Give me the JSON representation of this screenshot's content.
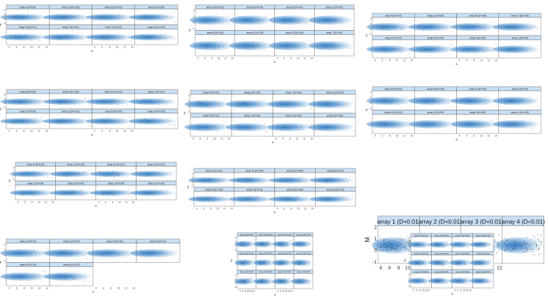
{
  "app": {
    "background": "#ffffff",
    "strip_color": "#c9e0f4",
    "density_color": "#2b79c2",
    "point_color": "#1a2a3a"
  },
  "figures": [
    {
      "id": "fig1",
      "ylabel": "M",
      "xlabel": "A",
      "panels": [
        {
          "label": "array 4 (D=0.00)"
        },
        {
          "label": "array 13 (D=0.00)"
        },
        {
          "label": "array 15 (D=0.02)"
        },
        {
          "label": "array 3 (D=0.00)"
        },
        {
          "label": "array 14 (D=0.01)"
        },
        {
          "label": "array 1 (D=0.01)"
        },
        {
          "label": "array 7 (D=0.00)"
        },
        {
          "label": "array 12 (D=0.00)"
        }
      ],
      "xticks": [
        "4",
        "6",
        "8",
        "10",
        "12",
        "14"
      ],
      "yticks": [
        "-2",
        "0",
        "2",
        "4"
      ]
    },
    {
      "id": "fig2",
      "ylabel": "M",
      "xlabel": "A",
      "panels": [
        {
          "label": "array 13 (D=0.00)"
        },
        {
          "label": "array 6 (D=0.00)"
        },
        {
          "label": "array 5 (D=0.00)"
        },
        {
          "label": "array 11 (D=0.00)"
        },
        {
          "label": "array 8 (D=0.00)"
        },
        {
          "label": "array 9 (D=0.00)"
        },
        {
          "label": "array 10 (D=0.00)"
        },
        {
          "label": "array 7 (D=0.00)"
        }
      ],
      "xticks": [
        "4",
        "6",
        "8",
        "10",
        "12",
        "14"
      ],
      "yticks": [
        "-2",
        "0",
        "2",
        "4"
      ]
    },
    {
      "id": "fig3",
      "ylabel": "M",
      "xlabel": "A",
      "panels": [
        {
          "label": "array 4 (D=0.00)"
        },
        {
          "label": "array 2 (D=0.00)"
        },
        {
          "label": "array 16 (D=0.00)"
        },
        {
          "label": "array 17 (D=0.00)"
        },
        {
          "label": "array 3 (D=0.00)"
        },
        {
          "label": "array 6 (D=0.00)"
        },
        {
          "label": "array 5 (D=0.00)"
        },
        {
          "label": "array 1 (D=0.00)"
        }
      ],
      "xticks": [
        "4",
        "6",
        "8",
        "10",
        "12",
        "14"
      ],
      "yticks": [
        "-2",
        "0",
        "2",
        "4"
      ]
    },
    {
      "id": "fig4",
      "ylabel": "M",
      "xlabel": "A",
      "panels": [
        {
          "label": "array 8 (D=0.00)"
        },
        {
          "label": "array 9 (D=0.00)"
        },
        {
          "label": "array 12 (D=0.01)"
        },
        {
          "label": "array 7 (D=0.01)"
        },
        {
          "label": "array 2 (D=0.00)"
        },
        {
          "label": "array 11 (D=0.01)"
        },
        {
          "label": "array 6 (D=0.00)"
        },
        {
          "label": "array 10 (D=0.00)"
        }
      ],
      "xticks": [
        "4",
        "6",
        "8",
        "10",
        "12",
        "14"
      ],
      "yticks": [
        "-2",
        "0",
        "2",
        "4"
      ]
    },
    {
      "id": "fig5",
      "ylabel": "M",
      "xlabel": "A",
      "panels": [
        {
          "label": "array 5 (D=0.00)"
        },
        {
          "label": "array 6 (D=0.00)"
        },
        {
          "label": "array 7 (D=0.00)"
        },
        {
          "label": "array 11 (D=0.00)"
        },
        {
          "label": "array 2 (D=0.01)"
        },
        {
          "label": "array 1 (D=0.00)"
        },
        {
          "label": "array 3 (D=0.00)"
        },
        {
          "label": "array 8 (D=0.00)"
        }
      ],
      "xticks": [
        "4",
        "6",
        "8",
        "10",
        "12",
        "14"
      ],
      "yticks": [
        "-2",
        "0",
        "2",
        "4"
      ]
    },
    {
      "id": "fig6",
      "ylabel": "M",
      "xlabel": "A",
      "panels": [
        {
          "label": "array 16 (D=0.01)"
        },
        {
          "label": "array 15 (D=0.00)"
        },
        {
          "label": "array 12 (D=0.00)"
        },
        {
          "label": "array 5 (D=0.00)"
        },
        {
          "label": "array 13 (D=0.00)"
        },
        {
          "label": "array 3 (D=0.00)"
        },
        {
          "label": "array 4 (D=0.00)"
        },
        {
          "label": "array 14 (D=0.00)"
        }
      ],
      "xticks": [
        "4",
        "6",
        "8",
        "10",
        "12",
        "14"
      ],
      "yticks": [
        "-2",
        "0",
        "2",
        "4"
      ]
    },
    {
      "id": "fig7",
      "ylabel": "M",
      "xlabel": "A",
      "panels": [
        {
          "label": "array 14 (D=0.00)"
        },
        {
          "label": "array 12 (D=0.00)"
        },
        {
          "label": "array 11 (D=0.01)"
        },
        {
          "label": "array 13 (D=0.01)"
        },
        {
          "label": "array 3 (D=0.00)"
        },
        {
          "label": "array 6 (D=0.00)"
        },
        {
          "label": "array 1 (D=0.00)"
        },
        {
          "label": "array 2 (D=0.00)"
        }
      ],
      "xticks": [
        "4",
        "6",
        "8",
        "10",
        "12",
        "14"
      ],
      "yticks": [
        "-2",
        "0",
        "2",
        "4"
      ]
    },
    {
      "id": "fig8",
      "ylabel": "M",
      "xlabel": "A",
      "panels": [
        {
          "label": "array 3 (D=0.01)"
        },
        {
          "label": "array 15 (D=0.00)"
        },
        {
          "label": "array 5 (D=0.00)"
        },
        {
          "label": "array 8 (D=0.01)"
        },
        {
          "label": "array 16 (D=0.00)"
        },
        {
          "label": "array 4 (D=0.01)"
        },
        {
          "label": "array 9 (D=0.00)"
        },
        {
          "label": "array 13 (D=0.00)"
        }
      ],
      "xticks": [
        "4",
        "6",
        "8",
        "10",
        "12",
        "14"
      ],
      "yticks": [
        "-2",
        "0",
        "2",
        "4"
      ]
    },
    {
      "id": "fig9",
      "ylabel": "M",
      "xlabel": "A",
      "panels": [
        {
          "label": "array 1 (D=0.01)"
        },
        {
          "label": "array 2 (D=0.01)"
        },
        {
          "label": "array 3 (D=0.01)"
        },
        {
          "label": "array 4 (D=0.01)"
        }
      ],
      "xticks": [
        "4",
        "6",
        "8",
        "10",
        "12"
      ],
      "yticks": [
        "-1",
        "0",
        "1",
        "2"
      ]
    },
    {
      "id": "fig10",
      "ylabel": "M",
      "xlabel": "A",
      "panels": [
        {
          "label": "array 1 (D=0.01)"
        },
        {
          "label": "array 2 (D=0.00)"
        },
        {
          "label": "array 3 (D=0.00)"
        },
        {
          "label": "array 4 (D=0.01)"
        },
        {
          "label": "array 5 (D=0.00)"
        },
        {
          "label": "array 6 (D=0.01)"
        }
      ],
      "xticks": [
        "4",
        "6",
        "8",
        "10",
        "12",
        "14"
      ],
      "yticks": [
        "-2",
        "0",
        "2",
        "4"
      ]
    },
    {
      "id": "fig11",
      "ylabel": "M",
      "xlabel": "A",
      "panels": [
        {
          "label": "array 9 (D=0.02)"
        },
        {
          "label": "array 13 (D=0.02)"
        },
        {
          "label": "array 15 (D=0.02)"
        },
        {
          "label": "array 16 (D=0.02)"
        },
        {
          "label": "array 10 (D=0.02)"
        },
        {
          "label": "array 14 (D=0.02)"
        },
        {
          "label": "array 11 (D=0.02)"
        },
        {
          "label": "array 12 (D=0.02)"
        },
        {
          "label": "array 1 (D=0.02)"
        },
        {
          "label": "array 2 (D=0.02)"
        },
        {
          "label": "array 3 (D=0.02)"
        },
        {
          "label": "array 4 (D=0.02)"
        }
      ],
      "xticks": [
        "4",
        "6",
        "8",
        "10",
        "12",
        "14"
      ],
      "yticks": [
        "-2",
        "0",
        "2",
        "4"
      ]
    },
    {
      "id": "fig12",
      "ylabel": "M",
      "xlabel": "A",
      "panels": [
        {
          "label": "array 9 (D=0.02)"
        },
        {
          "label": "array 10 (D=0.02)"
        },
        {
          "label": "array 15 (D=0.02)"
        },
        {
          "label": "array 16 (D=0.02)"
        },
        {
          "label": "array 12 (D=0.02)"
        },
        {
          "label": "array 13 (D=0.02)"
        },
        {
          "label": "array 14 (D=0.02)"
        },
        {
          "label": "array 8 (D=0.02)"
        },
        {
          "label": "array 21 (D=0.02)"
        },
        {
          "label": "array 2 (D=0.02)"
        },
        {
          "label": "array 3 (D=0.02)"
        },
        {
          "label": "array 11 (D=0.02)"
        }
      ],
      "xticks": [
        "4",
        "6",
        "8",
        "10",
        "12",
        "14"
      ],
      "yticks": [
        "-2",
        "0",
        "2",
        "4"
      ]
    }
  ]
}
